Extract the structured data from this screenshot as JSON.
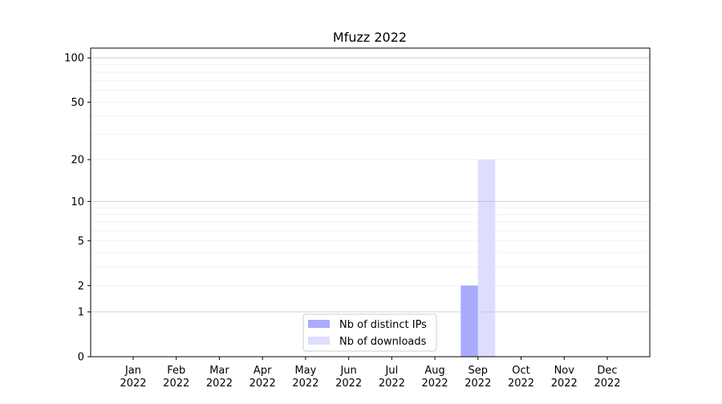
{
  "chart_data": {
    "type": "bar",
    "title": "Mfuzz 2022",
    "xlabel": "",
    "ylabel": "",
    "yscale": "log(1+y)",
    "ylim": [
      0,
      116
    ],
    "grid": true,
    "legend_position": "lower-center",
    "categories": [
      "Jan\n2022",
      "Feb\n2022",
      "Mar\n2022",
      "Apr\n2022",
      "May\n2022",
      "Jun\n2022",
      "Jul\n2022",
      "Aug\n2022",
      "Sep\n2022",
      "Oct\n2022",
      "Nov\n2022",
      "Dec\n2022"
    ],
    "yticks": [
      0,
      1,
      2,
      5,
      10,
      20,
      50,
      100
    ],
    "series": [
      {
        "name": "Nb of distinct IPs",
        "color": "#aaaaff",
        "values": [
          0,
          0,
          0,
          0,
          0,
          0,
          0,
          0,
          2,
          0,
          0,
          0
        ]
      },
      {
        "name": "Nb of downloads",
        "color": "#ddddff",
        "values": [
          0,
          0,
          0,
          0,
          0,
          0,
          0,
          0,
          20,
          0,
          0,
          0
        ]
      }
    ]
  }
}
